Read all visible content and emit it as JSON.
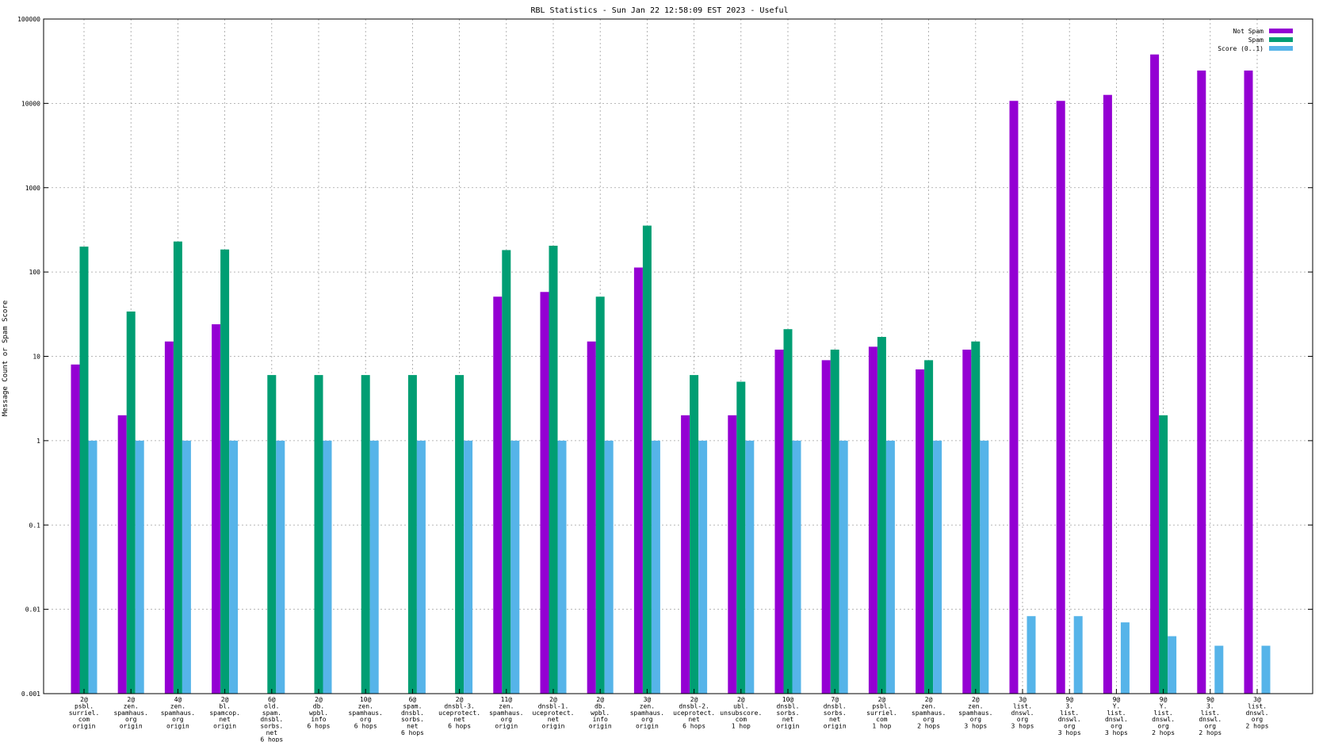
{
  "chart_data": {
    "type": "bar",
    "title": "RBL Statistics - Sun Jan 22 12:58:09 EST 2023 - Useful",
    "ylabel": "Message Count or Spam Score",
    "xlabel": "",
    "yscale": "log",
    "ylim": [
      0.001,
      100000
    ],
    "yticks": [
      "0.001",
      "0.01",
      "0.1",
      "1",
      "10",
      "100",
      "1000",
      "10000",
      "100000"
    ],
    "grid": true,
    "legend_position": "top-right",
    "categories": [
      [
        "2@",
        "psbl.",
        "surriel.",
        "com",
        "origin"
      ],
      [
        "2@",
        "zen.",
        "spamhaus.",
        "org",
        "origin"
      ],
      [
        "4@",
        "zen.",
        "spamhaus.",
        "org",
        "origin"
      ],
      [
        "2@",
        "bl.",
        "spamcop.",
        "net",
        "origin"
      ],
      [
        "6@",
        "old.",
        "spam.",
        "dnsbl.",
        "sorbs.",
        "net",
        "6 hops"
      ],
      [
        "2@",
        "db.",
        "wpbl.",
        "info",
        "6 hops"
      ],
      [
        "10@",
        "zen.",
        "spamhaus.",
        "org",
        "6 hops"
      ],
      [
        "6@",
        "spam.",
        "dnsbl.",
        "sorbs.",
        "net",
        "6 hops"
      ],
      [
        "2@",
        "dnsbl-3.",
        "uceprotect.",
        "net",
        "6 hops"
      ],
      [
        "11@",
        "zen.",
        "spamhaus.",
        "org",
        "origin"
      ],
      [
        "2@",
        "dnsbl-1.",
        "uceprotect.",
        "net",
        "origin"
      ],
      [
        "2@",
        "db.",
        "wpbl.",
        "info",
        "origin"
      ],
      [
        "3@",
        "zen.",
        "spamhaus.",
        "org",
        "origin"
      ],
      [
        "2@",
        "dnsbl-2.",
        "uceprotect.",
        "net",
        "6 hops"
      ],
      [
        "2@",
        "ubl.",
        "unsubscore.",
        "com",
        "1 hop"
      ],
      [
        "10@",
        "dnsbl.",
        "sorbs.",
        "net",
        "origin"
      ],
      [
        "7@",
        "dnsbl.",
        "sorbs.",
        "net",
        "origin"
      ],
      [
        "2@",
        "psbl.",
        "surriel.",
        "com",
        "1 hop"
      ],
      [
        "2@",
        "zen.",
        "spamhaus.",
        "org",
        "2 hops"
      ],
      [
        "2@",
        "zen.",
        "spamhaus.",
        "org",
        "3 hops"
      ],
      [
        "3@",
        "list.",
        "dnswl.",
        "org",
        "3 hops"
      ],
      [
        "9@",
        "3.",
        "list.",
        "dnswl.",
        "org",
        "3 hops"
      ],
      [
        "9@",
        "Y.",
        "list.",
        "dnswl.",
        "org",
        "3 hops"
      ],
      [
        "9@",
        "Y.",
        "list.",
        "dnswl.",
        "org",
        "2 hops"
      ],
      [
        "9@",
        "3.",
        "list.",
        "dnswl.",
        "org",
        "2 hops"
      ],
      [
        "3@",
        "list.",
        "dnswl.",
        "org",
        "2 hops"
      ]
    ],
    "series": [
      {
        "name": "Not Spam",
        "color": "#9400d3",
        "values": [
          8,
          2,
          15,
          24,
          null,
          null,
          null,
          null,
          null,
          51,
          58,
          15,
          113,
          2,
          2,
          12,
          9,
          13,
          7,
          12,
          10700,
          10700,
          12600,
          38000,
          24500,
          24500
        ]
      },
      {
        "name": "Spam",
        "color": "#009e73",
        "values": [
          200,
          34,
          230,
          185,
          6,
          6,
          6,
          6,
          6,
          182,
          205,
          51,
          355,
          6,
          5,
          21,
          12,
          17,
          9,
          15,
          null,
          null,
          null,
          2,
          null,
          null
        ]
      },
      {
        "name": "Score (0..1)",
        "color": "#56b4e9",
        "values": [
          1,
          1,
          1,
          1,
          1,
          1,
          1,
          1,
          1,
          1,
          1,
          1,
          1,
          1,
          1,
          1,
          1,
          1,
          1,
          1,
          0.0083,
          0.0083,
          0.007,
          0.0048,
          0.0037,
          0.0037
        ]
      }
    ]
  }
}
